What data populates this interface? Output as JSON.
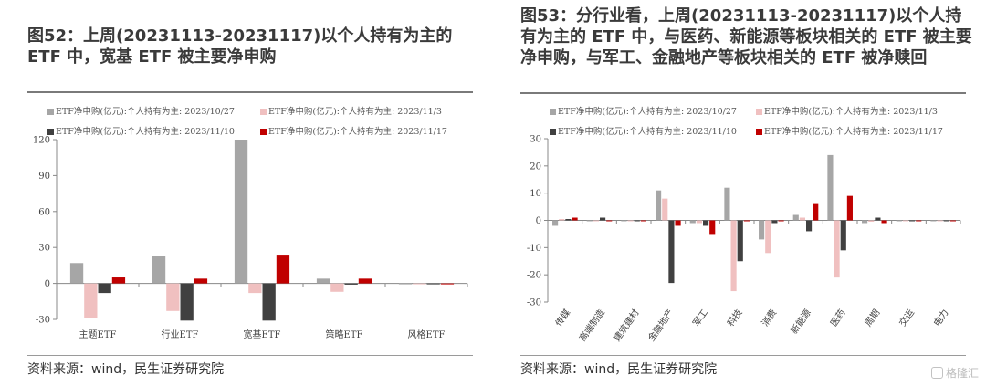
{
  "left": {
    "title": "图52：上周(20231113-20231117)以个人持有为主的 ETF 中，宽基 ETF 被主要净申购",
    "source": "资料来源：wind，民生证券研究院"
  },
  "right": {
    "title": "图53：分行业看，上周(20231113-20231117)以个人持有为主的 ETF 中，与医药、新能源等板块相关的 ETF 被主要净申购，与军工、金融地产等板块相关的 ETF 被净赎回",
    "source": "资料来源：wind，民生证券研究院"
  },
  "watermark": "格隆汇",
  "colors": {
    "2023/10/27": "#a6a6a6",
    "2023/11/3": "#f0c0c0",
    "2023/11/10": "#404040",
    "2023/11/17": "#c00000"
  },
  "chart_data": [
    {
      "type": "bar",
      "title": "",
      "legend_placement": "top",
      "categories": [
        "主题ETF",
        "行业ETF",
        "宽基ETF",
        "策略ETF",
        "风格ETF"
      ],
      "ylim": [
        -30,
        120
      ],
      "yticks": [
        -30,
        0,
        30,
        60,
        90,
        120
      ],
      "series": [
        {
          "name": "ETF净申购(亿元):个人持有为主: 2023/10/27",
          "key": "2023/10/27",
          "values": [
            17,
            23,
            120,
            4,
            0
          ]
        },
        {
          "name": "ETF净申购(亿元):个人持有为主: 2023/11/3",
          "key": "2023/11/3",
          "values": [
            -29,
            -23,
            -8,
            -7,
            0
          ]
        },
        {
          "name": "ETF净申购(亿元):个人持有为主: 2023/11/10",
          "key": "2023/11/10",
          "values": [
            -8,
            -31,
            -31,
            -1,
            0
          ]
        },
        {
          "name": "ETF净申购(亿元):个人持有为主: 2023/11/17",
          "key": "2023/11/17",
          "values": [
            5,
            4,
            24,
            4,
            0
          ]
        }
      ]
    },
    {
      "type": "bar",
      "title": "",
      "legend_placement": "top",
      "categories": [
        "传媒",
        "高端制造",
        "建筑建材",
        "金融地产",
        "军工",
        "科技",
        "消费",
        "新能源",
        "医药",
        "周期",
        "交运",
        "电力"
      ],
      "ylim": [
        -30,
        30
      ],
      "yticks": [
        -30,
        -20,
        -10,
        0,
        10,
        20,
        30
      ],
      "series": [
        {
          "name": "ETF净申购(亿元):个人持有为主: 2023/10/27",
          "key": "2023/10/27",
          "values": [
            -2,
            0,
            0,
            11,
            -1,
            12,
            -7,
            2,
            24,
            -1,
            0,
            0
          ]
        },
        {
          "name": "ETF净申购(亿元):个人持有为主: 2023/11/3",
          "key": "2023/11/3",
          "values": [
            0.5,
            0,
            0,
            8,
            -1,
            -26,
            -12,
            1,
            -21,
            -0.5,
            0,
            0
          ]
        },
        {
          "name": "ETF净申购(亿元):个人持有为主: 2023/11/10",
          "key": "2023/11/10",
          "values": [
            0.5,
            1,
            0,
            -23,
            -2,
            -15,
            -1,
            -4,
            -11,
            1,
            0,
            0
          ]
        },
        {
          "name": "ETF净申购(亿元):个人持有为主: 2023/11/17",
          "key": "2023/11/17",
          "values": [
            1,
            0,
            0,
            -2,
            -5,
            0,
            0,
            6,
            9,
            -1,
            0,
            0
          ]
        }
      ]
    }
  ]
}
